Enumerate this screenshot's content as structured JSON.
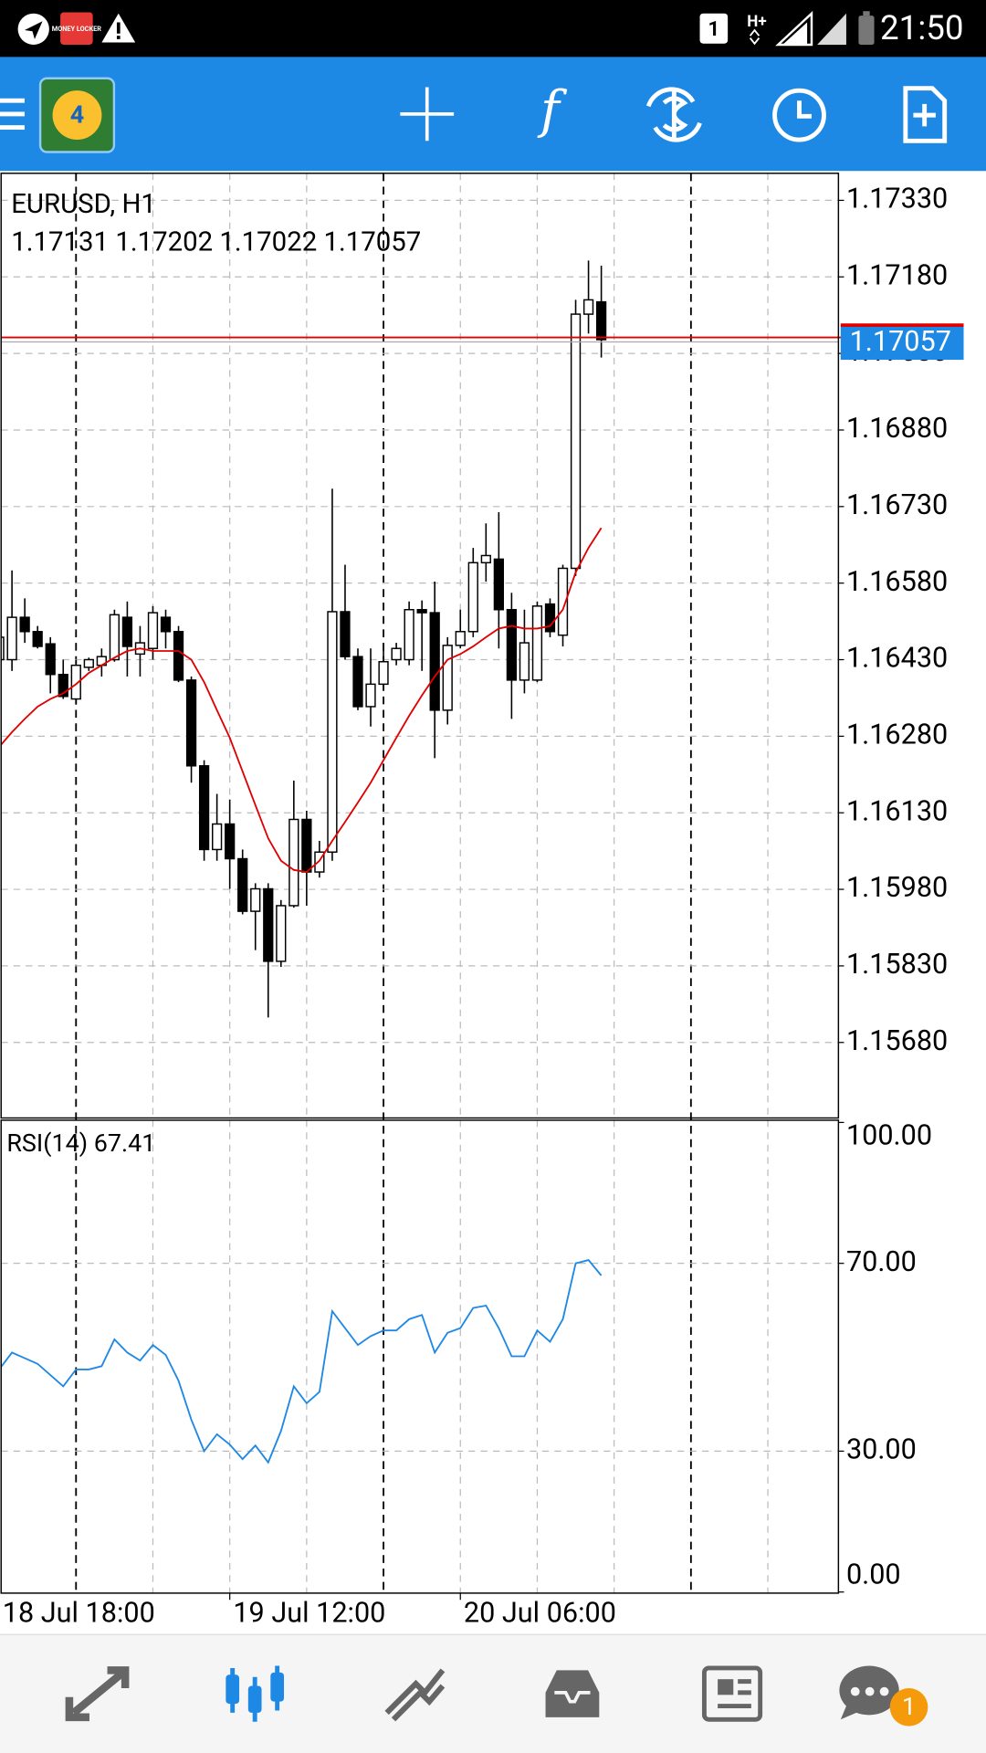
{
  "status_bar": {
    "app_icon_text": "MONEY LOCKER",
    "sim": "1",
    "network": "H+",
    "time": "21:50"
  },
  "toolbar": {
    "logo_number": "4",
    "function_icon": "f"
  },
  "chart_data": [
    {
      "type": "candlestick",
      "title": "EURUSD, H1",
      "ohlc_label": "1.17131 1.17202 1.17022 1.17057",
      "categories": [
        "18 Jul 18:00",
        null,
        null,
        null,
        null,
        null,
        null,
        null,
        null,
        null,
        null,
        null,
        null,
        null,
        null,
        null,
        null,
        null,
        "19 Jul 12:00",
        null,
        null,
        null,
        null,
        null,
        null,
        null,
        null,
        null,
        null,
        null,
        null,
        null,
        null,
        null,
        null,
        null,
        "20 Jul 06:00",
        null,
        null,
        null,
        null,
        null,
        null,
        null,
        null,
        null,
        null,
        null
      ],
      "open": [
        1.1643,
        1.1643,
        1.16513,
        1.16485,
        1.16461,
        1.16401,
        1.16353,
        1.16415,
        1.16419,
        1.1643,
        1.16513,
        1.16441,
        1.16452,
        1.16513,
        1.16485,
        1.1639,
        1.16222,
        1.16058,
        1.16108,
        1.1604,
        1.15937,
        1.15981,
        1.15839,
        1.15948,
        1.16117,
        1.16014,
        1.16053,
        1.16524,
        1.16436,
        1.16338,
        1.16382,
        1.1643,
        1.1643,
        1.16528,
        1.16522,
        1.16331,
        1.16458,
        1.16485,
        1.1662,
        1.16627,
        1.16528,
        1.1639,
        1.1639,
        1.16539,
        1.16478,
        1.16609,
        1.17107,
        1.17131
      ],
      "high": [
        1.16496,
        1.16605,
        1.1655,
        1.16496,
        1.16474,
        1.1643,
        1.1643,
        1.16434,
        1.16452,
        1.16528,
        1.16544,
        1.16496,
        1.16535,
        1.16528,
        1.16496,
        1.16397,
        1.16233,
        1.16167,
        1.16156,
        1.16058,
        1.15992,
        1.15992,
        1.15959,
        1.16193,
        1.16134,
        1.16075,
        1.16765,
        1.16616,
        1.16452,
        1.16452,
        1.16463,
        1.16463,
        1.16544,
        1.16546,
        1.16583,
        1.16474,
        1.16528,
        1.16649,
        1.16697,
        1.16719,
        1.16561,
        1.16528,
        1.16544,
        1.1655,
        1.16616,
        1.17135,
        1.17212,
        1.17202
      ],
      "low": [
        1.16408,
        1.16408,
        1.16463,
        1.16452,
        1.16364,
        1.16353,
        1.16342,
        1.16408,
        1.16397,
        1.16426,
        1.16397,
        1.16397,
        1.1643,
        1.16452,
        1.16386,
        1.16189,
        1.16036,
        1.16036,
        1.15981,
        1.15931,
        1.15861,
        1.15729,
        1.15828,
        1.15944,
        1.15948,
        1.16003,
        1.16036,
        1.1643,
        1.16331,
        1.16299,
        1.16375,
        1.16419,
        1.16419,
        1.16408,
        1.16237,
        1.16303,
        1.16452,
        1.16474,
        1.16583,
        1.16452,
        1.16314,
        1.16364,
        1.16386,
        1.16474,
        1.16456,
        1.16594,
        1.17069,
        1.17022
      ],
      "close": [
        1.16474,
        1.16513,
        1.16485,
        1.16456,
        1.16401,
        1.16358,
        1.16419,
        1.1643,
        1.16436,
        1.16518,
        1.16456,
        1.16463,
        1.16522,
        1.16485,
        1.1639,
        1.16222,
        1.16058,
        1.16108,
        1.1604,
        1.15937,
        1.15981,
        1.15839,
        1.15948,
        1.16117,
        1.16014,
        1.16053,
        1.16524,
        1.16436,
        1.16338,
        1.16382,
        1.16426,
        1.16452,
        1.16528,
        1.16522,
        1.16331,
        1.16458,
        1.16485,
        1.1662,
        1.16634,
        1.16528,
        1.1639,
        1.16463,
        1.16535,
        1.16485,
        1.16609,
        1.17107,
        1.17135,
        1.17057
      ],
      "ma": [
        1.16259,
        1.16288,
        1.16314,
        1.16338,
        1.16353,
        1.16364,
        1.16382,
        1.16404,
        1.16419,
        1.16434,
        1.16447,
        1.16452,
        1.16447,
        1.16447,
        1.16447,
        1.1643,
        1.16386,
        1.16331,
        1.16277,
        1.16211,
        1.16145,
        1.1608,
        1.16036,
        1.16018,
        1.16014,
        1.16036,
        1.16075,
        1.16112,
        1.1615,
        1.16189,
        1.16233,
        1.16277,
        1.1632,
        1.1636,
        1.16397,
        1.1643,
        1.16441,
        1.16456,
        1.16474,
        1.16491,
        1.16496,
        1.16491,
        1.16491,
        1.16496,
        1.16528,
        1.16601,
        1.16649,
        1.16688
      ],
      "ma_color": "#e00000",
      "up_color": "#ffffff",
      "down_color": "#000000",
      "bid": 1.17057,
      "bid_color": "#e00000",
      "bid_label_color": "#1e88e5",
      "ylim": [
        1.15532,
        1.17383
      ],
      "yticks": [
        {
          "value": 1.1733,
          "label": "1.17330"
        },
        {
          "value": 1.1718,
          "label": "1.17180"
        },
        {
          "value": 1.1703,
          "label": "1.17030"
        },
        {
          "value": 1.1688,
          "label": "1.16880"
        },
        {
          "value": 1.1673,
          "label": "1.16730"
        },
        {
          "value": 1.1658,
          "label": "1.16580"
        },
        {
          "value": 1.1643,
          "label": "1.16430"
        },
        {
          "value": 1.1628,
          "label": "1.16280"
        },
        {
          "value": 1.1613,
          "label": "1.16130"
        },
        {
          "value": 1.1598,
          "label": "1.15980"
        },
        {
          "value": 1.1583,
          "label": "1.15830"
        },
        {
          "value": 1.1568,
          "label": "1.15680"
        }
      ],
      "grid": true
    },
    {
      "type": "line",
      "label": "RSI(14) 67.41",
      "values": [
        47.4,
        51.0,
        49.8,
        48.6,
        46.2,
        43.8,
        47.4,
        47.4,
        48.1,
        53.8,
        51.0,
        49.3,
        52.6,
        50.5,
        45.0,
        36.7,
        30.0,
        33.6,
        31.4,
        28.3,
        31.2,
        27.6,
        34.3,
        43.8,
        40.2,
        42.6,
        59.8,
        56.2,
        52.6,
        54.5,
        55.7,
        55.7,
        58.1,
        59.0,
        51.0,
        55.2,
        56.2,
        60.5,
        61.0,
        56.2,
        50.2,
        50.2,
        55.7,
        53.3,
        58.1,
        70.0,
        70.7,
        67.41
      ],
      "color": "#1e88e5",
      "ylim": [
        0,
        100
      ],
      "yticks": [
        {
          "value": 100,
          "label": "100.00"
        },
        {
          "value": 70,
          "label": "70.00"
        },
        {
          "value": 30,
          "label": "30.00"
        },
        {
          "value": 0,
          "label": "0.00"
        }
      ],
      "grid": true
    }
  ],
  "bottom_nav": {
    "chat_badge": "1"
  }
}
